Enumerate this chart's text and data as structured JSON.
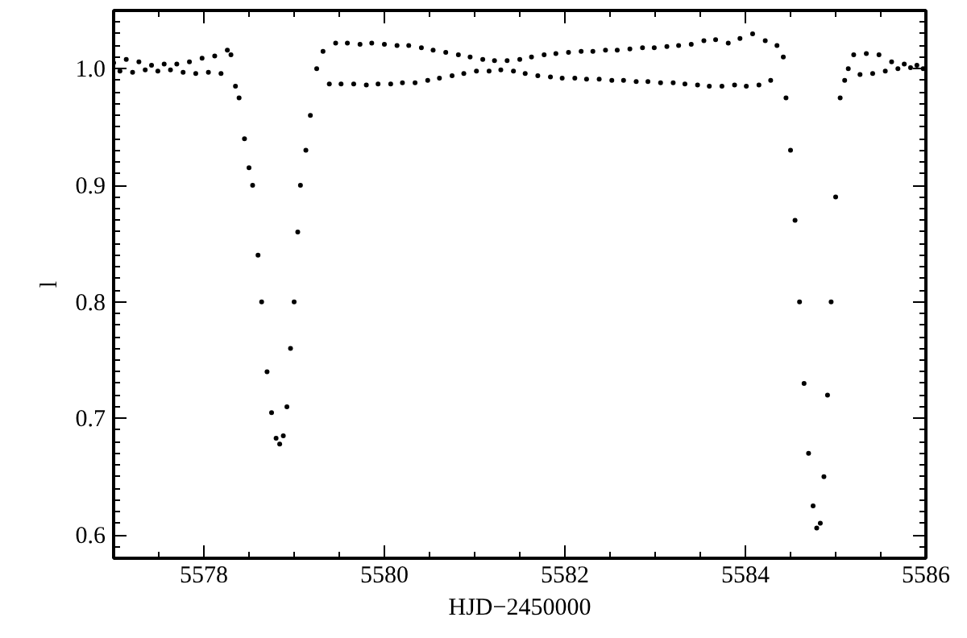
{
  "chart_data": {
    "type": "scatter",
    "xlabel": "HJD−2450000",
    "ylabel": "l",
    "marker": "circle",
    "grid": false,
    "xlim": [
      5577,
      5586
    ],
    "ylim": [
      0.58,
      1.05
    ],
    "xticks": [
      5578,
      5580,
      5582,
      5584,
      5586
    ],
    "yticks": [
      {
        "value": 0.6,
        "label": "0.6"
      },
      {
        "value": 0.7,
        "label": "0.7"
      },
      {
        "value": 0.8,
        "label": "0.8"
      },
      {
        "value": 0.9,
        "label": "0.9"
      },
      {
        "value": 1.0,
        "label": "1.0"
      }
    ],
    "series": [
      {
        "color": "#000000",
        "x": [
          5577.0,
          5577.07,
          5577.14,
          5577.21,
          5577.28,
          5577.35,
          5577.42,
          5577.49,
          5577.56,
          5577.63,
          5577.7,
          5577.77,
          5577.84,
          5577.91,
          5577.98,
          5578.05,
          5578.12,
          5578.19,
          5578.26,
          5578.3,
          5578.35,
          5578.39,
          5578.45,
          5578.5,
          5578.54,
          5578.6,
          5578.64,
          5578.7,
          5578.75,
          5578.8,
          5578.84,
          5578.88,
          5578.92,
          5578.96,
          5579.0,
          5579.04,
          5579.07,
          5579.13,
          5579.18,
          5579.25,
          5579.32,
          5579.39,
          5579.46,
          5579.52,
          5579.59,
          5579.66,
          5579.73,
          5579.8,
          5579.86,
          5579.93,
          5580.0,
          5580.07,
          5580.14,
          5580.2,
          5580.27,
          5580.34,
          5580.41,
          5580.48,
          5580.54,
          5580.61,
          5580.68,
          5580.75,
          5580.82,
          5580.88,
          5580.95,
          5581.02,
          5581.09,
          5581.16,
          5581.22,
          5581.29,
          5581.36,
          5581.43,
          5581.5,
          5581.56,
          5581.63,
          5581.7,
          5581.77,
          5581.84,
          5581.9,
          5581.97,
          5582.04,
          5582.11,
          5582.18,
          5582.24,
          5582.31,
          5582.38,
          5582.45,
          5582.52,
          5582.58,
          5582.65,
          5582.72,
          5582.79,
          5582.86,
          5582.92,
          5582.99,
          5583.06,
          5583.13,
          5583.2,
          5583.26,
          5583.33,
          5583.4,
          5583.47,
          5583.54,
          5583.6,
          5583.67,
          5583.74,
          5583.81,
          5583.88,
          5583.94,
          5584.01,
          5584.08,
          5584.15,
          5584.22,
          5584.28,
          5584.35,
          5584.42,
          5584.45,
          5584.5,
          5584.55,
          5584.6,
          5584.65,
          5584.7,
          5584.75,
          5584.79,
          5584.83,
          5584.87,
          5584.91,
          5584.95,
          5585.0,
          5585.05,
          5585.1,
          5585.14,
          5585.2,
          5585.27,
          5585.34,
          5585.41,
          5585.48,
          5585.55,
          5585.62,
          5585.69,
          5585.76,
          5585.83,
          5585.9,
          5585.97
        ],
        "values": [
          1.005,
          0.998,
          1.008,
          0.997,
          1.006,
          0.999,
          1.003,
          0.998,
          1.004,
          0.999,
          1.004,
          0.997,
          1.006,
          0.996,
          1.009,
          0.997,
          1.011,
          0.996,
          1.016,
          1.012,
          0.985,
          0.975,
          0.94,
          0.915,
          0.9,
          0.84,
          0.8,
          0.74,
          0.705,
          0.683,
          0.678,
          0.685,
          0.71,
          0.76,
          0.8,
          0.86,
          0.9,
          0.93,
          0.96,
          1.0,
          1.015,
          0.987,
          1.022,
          0.987,
          1.022,
          0.987,
          1.021,
          0.986,
          1.022,
          0.987,
          1.021,
          0.987,
          1.02,
          0.988,
          1.02,
          0.988,
          1.018,
          0.99,
          1.016,
          0.992,
          1.014,
          0.994,
          1.012,
          0.996,
          1.01,
          0.998,
          1.008,
          0.998,
          1.007,
          0.999,
          1.007,
          0.998,
          1.008,
          0.996,
          1.01,
          0.994,
          1.012,
          0.993,
          1.013,
          0.992,
          1.014,
          0.992,
          1.015,
          0.991,
          1.015,
          0.991,
          1.016,
          0.99,
          1.016,
          0.99,
          1.017,
          0.989,
          1.018,
          0.989,
          1.018,
          0.988,
          1.019,
          0.988,
          1.02,
          0.987,
          1.021,
          0.986,
          1.024,
          0.985,
          1.025,
          0.985,
          1.022,
          0.986,
          1.026,
          0.985,
          1.03,
          0.986,
          1.024,
          0.99,
          1.02,
          1.01,
          0.975,
          0.93,
          0.87,
          0.8,
          0.73,
          0.67,
          0.625,
          0.606,
          0.61,
          0.65,
          0.72,
          0.8,
          0.89,
          0.975,
          0.99,
          1.0,
          1.012,
          0.995,
          1.013,
          0.996,
          1.012,
          0.998,
          1.006,
          1.0,
          1.004,
          1.001,
          1.003,
          1.0
        ]
      }
    ]
  }
}
